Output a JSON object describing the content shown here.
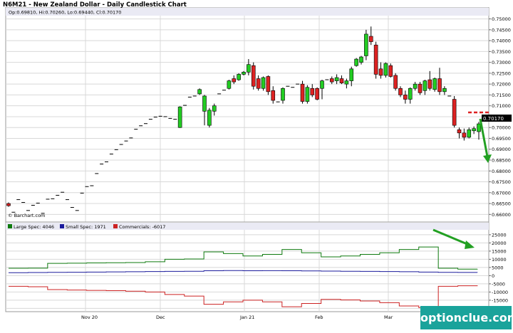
{
  "chart_data": [
    {
      "type": "candlestick",
      "title": "N6M21 - New Zealand Dollar - Daily Candlestick Chart",
      "ohlc_label": "Op:0.69810, Hi:0.70260, Lo:0.69440, Cl:0.70170",
      "source_label": "© Barchart.com",
      "last_price_label": "0.70170",
      "y_axis_side": "right",
      "ylim": [
        0.6565,
        0.7515
      ],
      "yticks": [
        "0.75000",
        "0.74500",
        "0.74000",
        "0.73500",
        "0.73000",
        "0.72500",
        "0.72000",
        "0.71500",
        "0.71000",
        "0.70500",
        "0.70000",
        "0.69500",
        "0.69000",
        "0.68500",
        "0.68000",
        "0.67500",
        "0.67000",
        "0.66500",
        "0.66000"
      ],
      "x_labels": [
        "Nov 20",
        "Dec",
        "Jan 21",
        "Feb",
        "Mar"
      ],
      "grid": true,
      "ohlc": [
        [
          0.665,
          0.6655,
          0.6635,
          0.664
        ],
        [
          0.6615,
          0.662,
          0.66,
          0.661
        ],
        [
          0.6665,
          0.667,
          0.666,
          0.6668
        ],
        [
          0.666,
          0.6665,
          0.665,
          0.6655
        ],
        [
          0.662,
          0.6625,
          0.6615,
          0.6618
        ],
        [
          0.664,
          0.6645,
          0.6635,
          0.6642
        ],
        [
          0.6655,
          0.666,
          0.665,
          0.6652
        ],
        [
          0.661,
          0.6615,
          0.66,
          0.6605
        ],
        [
          0.6665,
          0.6672,
          0.666,
          0.667
        ],
        [
          0.6675,
          0.668,
          0.667,
          0.6672
        ],
        [
          0.6685,
          0.669,
          0.668,
          0.6688
        ],
        [
          0.67,
          0.6705,
          0.6695,
          0.6702
        ],
        [
          0.667,
          0.6675,
          0.6665,
          0.6668
        ],
        [
          0.663,
          0.6635,
          0.6625,
          0.6632
        ],
        [
          0.662,
          0.6625,
          0.6615,
          0.6618
        ],
        [
          0.6695,
          0.67,
          0.669,
          0.6698
        ],
        [
          0.6725,
          0.673,
          0.672,
          0.6728
        ],
        [
          0.673,
          0.6735,
          0.6725,
          0.6732
        ],
        [
          0.6785,
          0.679,
          0.678,
          0.6788
        ],
        [
          0.683,
          0.6835,
          0.6825,
          0.6832
        ],
        [
          0.684,
          0.6845,
          0.6835,
          0.6842
        ],
        [
          0.6875,
          0.688,
          0.687,
          0.6878
        ],
        [
          0.6895,
          0.69,
          0.689,
          0.6898
        ],
        [
          0.692,
          0.6925,
          0.6915,
          0.6922
        ],
        [
          0.6935,
          0.694,
          0.693,
          0.6938
        ],
        [
          0.695,
          0.6955,
          0.6945,
          0.6952
        ],
        [
          0.699,
          0.6995,
          0.6985,
          0.6992
        ],
        [
          0.7005,
          0.701,
          0.7,
          0.7008
        ],
        [
          0.7015,
          0.702,
          0.701,
          0.7018
        ],
        [
          0.7035,
          0.704,
          0.703,
          0.7038
        ],
        [
          0.7045,
          0.705,
          0.704,
          0.7048
        ],
        [
          0.705,
          0.7055,
          0.7045,
          0.7052
        ],
        [
          0.705,
          0.7055,
          0.7045,
          0.705
        ],
        [
          0.7045,
          0.705,
          0.704,
          0.7042
        ],
        [
          0.704,
          0.7045,
          0.7035,
          0.7038
        ],
        [
          0.7,
          0.7098,
          0.6998,
          0.7095
        ],
        [
          0.71,
          0.711,
          0.7095,
          0.7102
        ],
        [
          0.7135,
          0.7145,
          0.7128,
          0.714
        ],
        [
          0.714,
          0.7148,
          0.7135,
          0.7145
        ],
        [
          0.7155,
          0.718,
          0.715,
          0.7175
        ],
        [
          0.7075,
          0.715,
          0.701,
          0.7145
        ],
        [
          0.701,
          0.709,
          0.7,
          0.708
        ],
        [
          0.7075,
          0.711,
          0.7055,
          0.71
        ],
        [
          0.715,
          0.716,
          0.7145,
          0.7155
        ],
        [
          0.717,
          0.7175,
          0.7165,
          0.7172
        ],
        [
          0.718,
          0.722,
          0.7175,
          0.7215
        ],
        [
          0.7225,
          0.724,
          0.72,
          0.721
        ],
        [
          0.722,
          0.725,
          0.7215,
          0.7245
        ],
        [
          0.7245,
          0.726,
          0.724,
          0.7255
        ],
        [
          0.7255,
          0.7315,
          0.724,
          0.729
        ],
        [
          0.7285,
          0.73,
          0.7175,
          0.719
        ],
        [
          0.7225,
          0.724,
          0.717,
          0.718
        ],
        [
          0.718,
          0.7235,
          0.717,
          0.723
        ],
        [
          0.7235,
          0.724,
          0.715,
          0.7165
        ],
        [
          0.717,
          0.719,
          0.711,
          0.7125
        ],
        [
          0.712,
          0.713,
          0.711,
          0.7118
        ],
        [
          0.7125,
          0.7185,
          0.711,
          0.718
        ],
        [
          0.719,
          0.7195,
          0.7185,
          0.719
        ],
        [
          0.719,
          0.72,
          0.718,
          0.7185
        ],
        [
          0.7195,
          0.7205,
          0.719,
          0.72
        ],
        [
          0.72,
          0.7215,
          0.711,
          0.712
        ],
        [
          0.712,
          0.7195,
          0.711,
          0.7185
        ],
        [
          0.718,
          0.72,
          0.714,
          0.715
        ],
        [
          0.718,
          0.7185,
          0.7125,
          0.713
        ],
        [
          0.718,
          0.722,
          0.713,
          0.7215
        ],
        [
          0.7215,
          0.723,
          0.7195,
          0.722
        ],
        [
          0.7225,
          0.7235,
          0.72,
          0.721
        ],
        [
          0.7215,
          0.7245,
          0.72,
          0.723
        ],
        [
          0.7225,
          0.724,
          0.72,
          0.7205
        ],
        [
          0.72,
          0.7225,
          0.718,
          0.7215
        ],
        [
          0.7215,
          0.728,
          0.719,
          0.727
        ],
        [
          0.7285,
          0.732,
          0.728,
          0.7315
        ],
        [
          0.73,
          0.733,
          0.729,
          0.7325
        ],
        [
          0.733,
          0.745,
          0.731,
          0.743
        ],
        [
          0.742,
          0.7465,
          0.738,
          0.7395
        ],
        [
          0.738,
          0.7395,
          0.7225,
          0.7245
        ],
        [
          0.727,
          0.73,
          0.7225,
          0.724
        ],
        [
          0.724,
          0.73,
          0.723,
          0.7295
        ],
        [
          0.7285,
          0.7295,
          0.723,
          0.7235
        ],
        [
          0.724,
          0.725,
          0.717,
          0.718
        ],
        [
          0.718,
          0.719,
          0.714,
          0.715
        ],
        [
          0.715,
          0.717,
          0.711,
          0.713
        ],
        [
          0.713,
          0.7185,
          0.711,
          0.718
        ],
        [
          0.718,
          0.721,
          0.717,
          0.72
        ],
        [
          0.72,
          0.721,
          0.715,
          0.716
        ],
        [
          0.717,
          0.722,
          0.715,
          0.7215
        ],
        [
          0.722,
          0.726,
          0.717,
          0.718
        ],
        [
          0.7175,
          0.723,
          0.7165,
          0.7225
        ],
        [
          0.7225,
          0.7275,
          0.715,
          0.7165
        ],
        [
          0.7165,
          0.719,
          0.715,
          0.718
        ],
        [
          0.715,
          0.717,
          0.712,
          0.7145
        ],
        [
          0.713,
          0.7145,
          0.7,
          0.701
        ],
        [
          0.699,
          0.7,
          0.695,
          0.6975
        ],
        [
          0.6975,
          0.6995,
          0.694,
          0.6955
        ],
        [
          0.6955,
          0.7,
          0.695,
          0.699
        ],
        [
          0.6985,
          0.7005,
          0.697,
          0.6995
        ],
        [
          0.6981,
          0.7026,
          0.6944,
          0.7017
        ]
      ]
    },
    {
      "type": "line",
      "title": "",
      "ylim": [
        -22000,
        28000
      ],
      "yticks": [
        "25000",
        "20000",
        "15000",
        "10000",
        "5000",
        "0",
        "-5000",
        "-10000",
        "-15000",
        "-20000"
      ],
      "x_labels": [
        "Nov 20",
        "Dec",
        "Jan 21",
        "Feb",
        "Mar"
      ],
      "legend_position": "top-left",
      "grid": true,
      "series": [
        {
          "name": "Large Spec: 4046",
          "color": "#0e7a0e",
          "values": [
            4500,
            4600,
            7500,
            7600,
            7800,
            7900,
            8000,
            8500,
            10000,
            10200,
            14500,
            13500,
            12000,
            13000,
            16000,
            14000,
            11500,
            12000,
            13000,
            14000,
            16000,
            17500,
            4500,
            4000,
            4046
          ]
        },
        {
          "name": "Small Spec: 1971",
          "color": "#1a1a9c",
          "values": [
            1800,
            1900,
            2000,
            2100,
            2200,
            2300,
            2400,
            2500,
            2600,
            2700,
            3000,
            3100,
            3000,
            3050,
            3000,
            2900,
            2800,
            2700,
            2600,
            2500,
            2400,
            2200,
            2000,
            1990,
            1971
          ]
        },
        {
          "name": "Commercials: -6017",
          "color": "#cc2222",
          "values": [
            -6500,
            -6800,
            -8500,
            -8800,
            -9000,
            -9200,
            -9500,
            -10000,
            -11500,
            -12500,
            -17500,
            -16000,
            -15000,
            -16000,
            -19000,
            -17000,
            -14500,
            -14800,
            -15500,
            -16500,
            -18500,
            -19500,
            -6500,
            -6200,
            -6017
          ]
        }
      ]
    }
  ],
  "watermark": "optionclue.com",
  "colors": {
    "up": "#22cc22",
    "down": "#dd2222",
    "price_line": "#dd2222",
    "arrow": "#22a022",
    "grid": "#d8d8d8"
  }
}
